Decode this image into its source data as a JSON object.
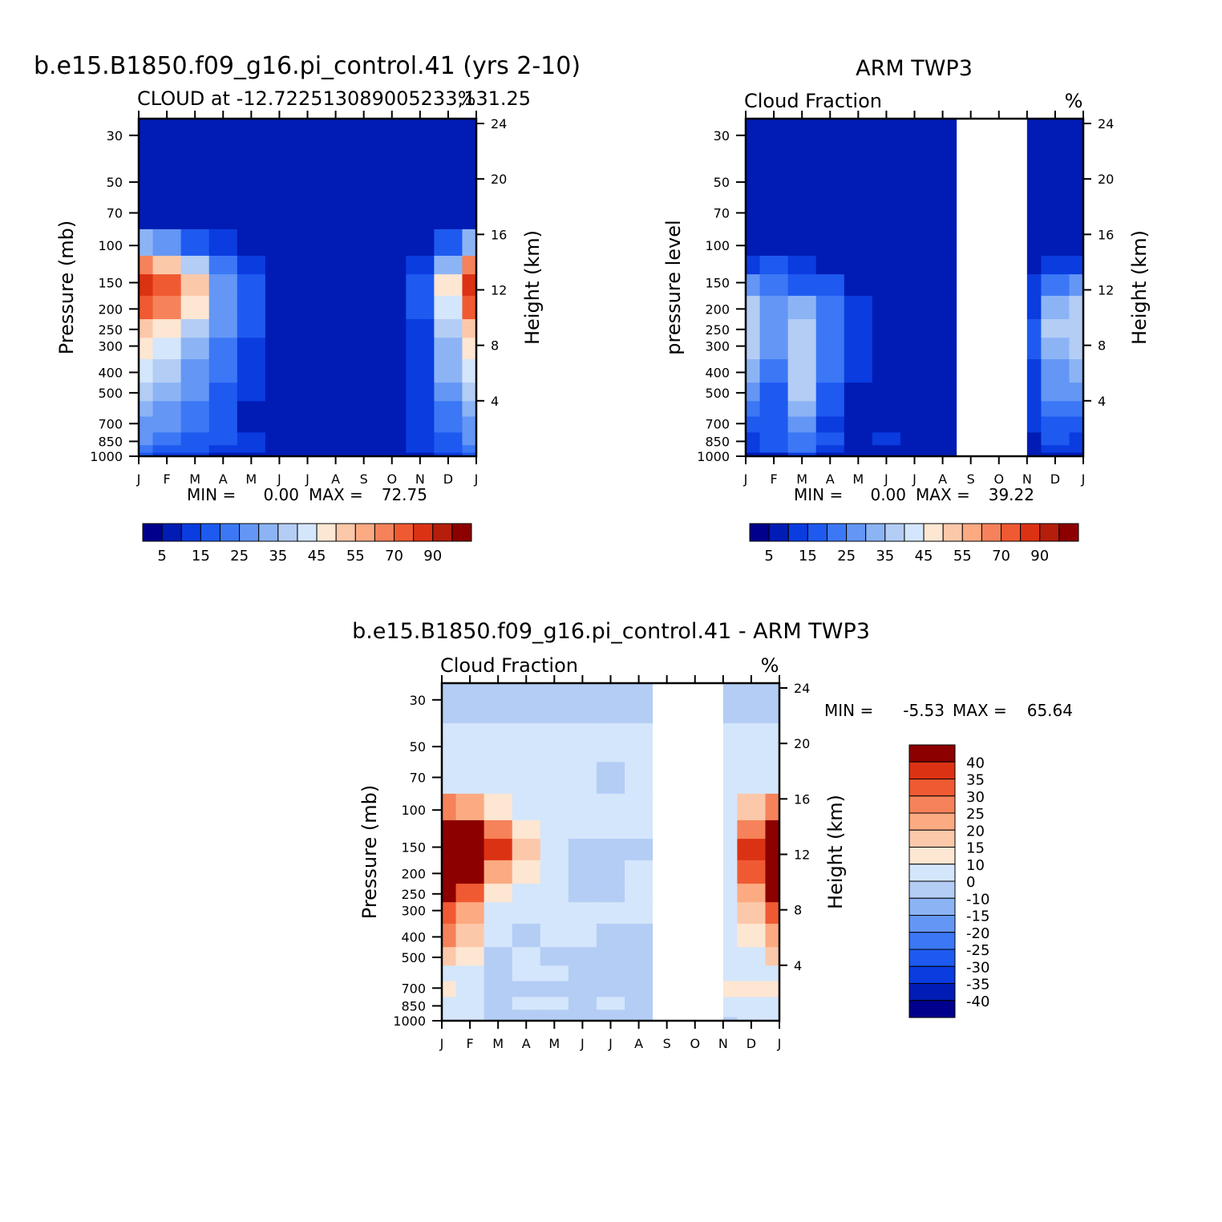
{
  "colors": {
    "seq_palette": [
      "#00008c",
      "#001cb4",
      "#0a3ce0",
      "#1e5af0",
      "#3c78f5",
      "#6496f5",
      "#8cb4f5",
      "#b4cdf5",
      "#d4e6fb",
      "#fde6d2",
      "#fcc8aa",
      "#fcaa82",
      "#f5825a",
      "#f05a32",
      "#dc3214",
      "#b41e0a",
      "#8c0000"
    ],
    "diff_palette": [
      "#00008c",
      "#001cb4",
      "#0a3ce0",
      "#1e5af0",
      "#3c78f5",
      "#6496f5",
      "#8cb4f5",
      "#b4cdf5",
      "#d4e6fb",
      "#fde6d2",
      "#fcc8aa",
      "#fcaa82",
      "#f5825a",
      "#f05a32",
      "#dc3214",
      "#b41e0a",
      "#8c0000"
    ]
  },
  "chart_data": [
    {
      "type": "heatmap",
      "panel": "model",
      "title": "b.e15.B1850.f09_g16.pi_control.41 (yrs 2-10)",
      "left_label": "CLOUD at -12.722513089005233,131.25",
      "right_label": "%",
      "ylabel": "Pressure (mb)",
      "y2label": "Height (km)",
      "x_ticks": [
        "J",
        "F",
        "M",
        "A",
        "M",
        "J",
        "J",
        "A",
        "S",
        "O",
        "N",
        "D",
        "J"
      ],
      "y_ticks": [
        30,
        50,
        70,
        100,
        150,
        200,
        250,
        300,
        400,
        500,
        700,
        850,
        1000
      ],
      "y2_ticks": [
        24,
        20,
        16,
        12,
        8,
        4
      ],
      "ylim": [
        1000,
        25
      ],
      "stats": {
        "min_label": "MIN =",
        "min": "0.00",
        "max_label": "MAX =",
        "max": "72.75"
      },
      "levels": [
        0,
        5,
        10,
        15,
        20,
        25,
        30,
        35,
        40,
        45,
        50,
        55,
        60,
        70,
        80,
        90
      ],
      "colorbar_labels": [
        "5",
        "15",
        "25",
        "35",
        "45",
        "55",
        "70",
        "90"
      ],
      "missing_months": [],
      "months": [
        "J",
        "F",
        "M",
        "A",
        "M",
        "J",
        "J",
        "A",
        "S",
        "O",
        "N",
        "D",
        "J"
      ],
      "grid_pressure": [
        25,
        30,
        50,
        70,
        100,
        125,
        150,
        200,
        250,
        300,
        400,
        500,
        600,
        700,
        850,
        925,
        1000
      ],
      "values": [
        [
          0,
          0,
          0,
          0,
          0,
          0,
          0,
          0,
          0,
          0,
          0,
          0,
          0
        ],
        [
          0,
          0,
          0,
          0,
          0,
          0,
          0,
          0,
          0,
          0,
          0,
          0,
          0
        ],
        [
          0,
          0,
          0,
          0,
          0,
          0,
          0,
          0,
          0,
          0,
          0,
          0,
          0
        ],
        [
          2,
          2,
          1,
          1,
          0,
          0,
          0,
          0,
          0,
          0,
          0,
          1,
          2
        ],
        [
          25,
          20,
          10,
          6,
          2,
          0,
          0,
          0,
          0,
          0,
          2,
          12,
          25
        ],
        [
          55,
          48,
          30,
          18,
          8,
          2,
          0,
          1,
          3,
          1,
          6,
          28,
          55
        ],
        [
          72,
          68,
          45,
          24,
          12,
          4,
          1,
          2,
          1,
          0,
          10,
          40,
          72
        ],
        [
          62,
          55,
          40,
          24,
          12,
          3,
          0,
          0,
          0,
          0,
          10,
          38,
          62
        ],
        [
          48,
          42,
          30,
          22,
          10,
          2,
          0,
          0,
          0,
          0,
          9,
          32,
          48
        ],
        [
          40,
          35,
          26,
          19,
          8,
          2,
          0,
          0,
          0,
          0,
          9,
          28,
          40
        ],
        [
          36,
          30,
          23,
          15,
          6,
          1,
          0,
          0,
          0,
          0,
          8,
          25,
          36
        ],
        [
          32,
          27,
          20,
          13,
          5,
          1,
          0,
          0,
          0,
          0,
          8,
          22,
          32
        ],
        [
          27,
          23,
          17,
          11,
          4,
          1,
          0,
          0,
          0,
          0,
          7,
          18,
          27
        ],
        [
          24,
          22,
          16,
          10,
          4,
          1,
          0,
          0,
          1,
          0,
          7,
          15,
          24
        ],
        [
          22,
          18,
          12,
          10,
          5,
          3,
          1,
          1,
          2,
          2,
          6,
          14,
          22
        ],
        [
          18,
          14,
          10,
          8,
          5,
          3,
          1,
          1,
          2,
          1,
          5,
          10,
          18
        ],
        [
          12,
          8,
          5,
          3,
          2,
          1,
          0,
          0,
          1,
          0,
          2,
          6,
          12
        ]
      ]
    },
    {
      "type": "heatmap",
      "panel": "observations",
      "title": "ARM TWP3",
      "left_label": "Cloud Fraction",
      "right_label": "%",
      "ylabel": "pressure level",
      "y2label": "Height (km)",
      "x_ticks": [
        "J",
        "F",
        "M",
        "A",
        "M",
        "J",
        "J",
        "A",
        "S",
        "O",
        "N",
        "D",
        "J"
      ],
      "y_ticks": [
        30,
        50,
        70,
        100,
        150,
        200,
        250,
        300,
        400,
        500,
        700,
        850,
        1000
      ],
      "y2_ticks": [
        24,
        20,
        16,
        12,
        8,
        4
      ],
      "ylim": [
        1000,
        25
      ],
      "stats": {
        "min_label": "MIN =",
        "min": "0.00",
        "max_label": "MAX =",
        "max": "39.22"
      },
      "levels": [
        0,
        5,
        10,
        15,
        20,
        25,
        30,
        35,
        40,
        45,
        50,
        55,
        60,
        70,
        80,
        90
      ],
      "colorbar_labels": [
        "5",
        "15",
        "25",
        "35",
        "45",
        "55",
        "70",
        "90"
      ],
      "missing_months": [
        8,
        9
      ],
      "months": [
        "J",
        "F",
        "M",
        "A",
        "M",
        "J",
        "J",
        "A",
        "S",
        "O",
        "N",
        "D",
        "J"
      ],
      "grid_pressure": [
        25,
        30,
        50,
        70,
        100,
        125,
        150,
        200,
        250,
        300,
        400,
        500,
        600,
        700,
        850,
        925,
        1000
      ],
      "values": [
        [
          0,
          0,
          0,
          0,
          0,
          0,
          0,
          0,
          null,
          null,
          0,
          0,
          0
        ],
        [
          0,
          0,
          0,
          0,
          0,
          0,
          0,
          0,
          null,
          null,
          0,
          0,
          0
        ],
        [
          0,
          0,
          0,
          0,
          0,
          0,
          0,
          0,
          null,
          null,
          0,
          0,
          0
        ],
        [
          0,
          0,
          0,
          0,
          0,
          0,
          0,
          0,
          null,
          null,
          0,
          0,
          0
        ],
        [
          3,
          4,
          3,
          1,
          0,
          0,
          0,
          0,
          null,
          null,
          0,
          1,
          3
        ],
        [
          8,
          10,
          8,
          4,
          1,
          0,
          0,
          0,
          null,
          null,
          2,
          6,
          8
        ],
        [
          20,
          18,
          14,
          10,
          4,
          0,
          0,
          0,
          null,
          null,
          6,
          16,
          20
        ],
        [
          30,
          22,
          28,
          16,
          8,
          0,
          0,
          0,
          null,
          null,
          8,
          26,
          30
        ],
        [
          33,
          24,
          33,
          18,
          8,
          0,
          0,
          0,
          null,
          null,
          10,
          30,
          33
        ],
        [
          30,
          22,
          34,
          18,
          8,
          0,
          0,
          0,
          null,
          null,
          10,
          28,
          30
        ],
        [
          26,
          18,
          33,
          16,
          6,
          0,
          0,
          0,
          null,
          null,
          8,
          24,
          26
        ],
        [
          22,
          14,
          32,
          14,
          4,
          0,
          0,
          0,
          null,
          null,
          6,
          20,
          22
        ],
        [
          16,
          10,
          26,
          10,
          2,
          0,
          0,
          0,
          null,
          null,
          6,
          16,
          16
        ],
        [
          14,
          10,
          20,
          8,
          2,
          0,
          0,
          0,
          null,
          null,
          6,
          14,
          14
        ],
        [
          8,
          12,
          18,
          10,
          4,
          6,
          0,
          0,
          null,
          null,
          2,
          10,
          8
        ],
        [
          6,
          10,
          15,
          8,
          3,
          1,
          0,
          0,
          null,
          null,
          2,
          8,
          6
        ],
        [
          4,
          4,
          6,
          3,
          1,
          0,
          0,
          0,
          null,
          null,
          1,
          4,
          4
        ]
      ]
    },
    {
      "type": "heatmap",
      "panel": "difference",
      "title": "b.e15.B1850.f09_g16.pi_control.41 - ARM TWP3",
      "left_label": "Cloud Fraction",
      "right_label": "%",
      "ylabel": "Pressure (mb)",
      "y2label": "Height (km)",
      "x_ticks": [
        "J",
        "F",
        "M",
        "A",
        "M",
        "J",
        "J",
        "A",
        "S",
        "O",
        "N",
        "D",
        "J"
      ],
      "y_ticks": [
        30,
        50,
        70,
        100,
        150,
        200,
        250,
        300,
        400,
        500,
        700,
        850,
        1000
      ],
      "y2_ticks": [
        24,
        20,
        16,
        12,
        8,
        4
      ],
      "ylim": [
        1000,
        25
      ],
      "stats": {
        "min_label": "MIN =",
        "min": "-5.53",
        "max_label": "MAX =",
        "max": "65.64"
      },
      "levels": [
        -40,
        -35,
        -30,
        -25,
        -20,
        -15,
        -10,
        0,
        10,
        15,
        20,
        25,
        30,
        35,
        40
      ],
      "colorbar_labels": [
        "40",
        "35",
        "30",
        "25",
        "20",
        "15",
        "10",
        "0",
        "-10",
        "-15",
        "-20",
        "-25",
        "-30",
        "-35",
        "-40"
      ],
      "missing_months": [
        8,
        9
      ],
      "months": [
        "J",
        "F",
        "M",
        "A",
        "M",
        "J",
        "J",
        "A",
        "S",
        "O",
        "N",
        "D",
        "J"
      ],
      "grid_pressure": [
        25,
        30,
        50,
        70,
        100,
        125,
        150,
        200,
        250,
        300,
        400,
        500,
        600,
        700,
        850,
        925,
        1000
      ],
      "values": [
        [
          -1,
          -1,
          -1,
          -1,
          -1,
          -1,
          -1,
          -1,
          null,
          null,
          -1,
          -1,
          -1
        ],
        [
          -1,
          -1,
          -1,
          -1,
          -1,
          -1,
          -1,
          -1,
          null,
          null,
          -1,
          -1,
          -1
        ],
        [
          1,
          1,
          1,
          0.5,
          1,
          1,
          1,
          1,
          null,
          null,
          1,
          1,
          1
        ],
        [
          3,
          3,
          2,
          1,
          1,
          1,
          -0.5,
          1,
          null,
          null,
          1,
          2,
          3
        ],
        [
          25,
          20,
          12,
          6,
          3,
          2,
          1,
          1,
          null,
          null,
          4,
          15,
          28
        ],
        [
          50,
          48,
          28,
          14,
          6,
          3,
          2,
          1,
          null,
          null,
          6,
          28,
          55
        ],
        [
          65,
          60,
          35,
          18,
          6,
          -1,
          -1,
          -1,
          null,
          null,
          6,
          35,
          65
        ],
        [
          55,
          48,
          22,
          10,
          5,
          -1,
          -1,
          2,
          null,
          null,
          6,
          30,
          55
        ],
        [
          40,
          30,
          12,
          8,
          4,
          -1,
          -1,
          3,
          null,
          null,
          5,
          24,
          40
        ],
        [
          32,
          20,
          8,
          6,
          3,
          3,
          2,
          2,
          null,
          null,
          4,
          18,
          30
        ],
        [
          25,
          16,
          3,
          -1,
          2,
          3,
          -1,
          -1,
          null,
          null,
          3,
          12,
          22
        ],
        [
          18,
          12,
          -1,
          2,
          -1,
          -1,
          -1,
          -1,
          null,
          null,
          2,
          8,
          16
        ],
        [
          8,
          8,
          -1,
          2,
          1,
          -1,
          -1,
          -1,
          null,
          null,
          1,
          4,
          6
        ],
        [
          12,
          5,
          -1,
          -1,
          -1,
          -1,
          -1,
          -1,
          null,
          null,
          12,
          12,
          10
        ],
        [
          5,
          3,
          -1,
          5,
          2,
          -1,
          5,
          -1,
          null,
          null,
          2,
          3,
          3
        ],
        [
          3,
          2,
          -1,
          -1,
          -1,
          -1,
          -1,
          -1,
          null,
          null,
          1,
          2,
          2
        ],
        [
          2,
          1,
          -1,
          -1,
          -1,
          -1,
          -1,
          -1,
          null,
          null,
          -1,
          1,
          1
        ]
      ]
    }
  ]
}
